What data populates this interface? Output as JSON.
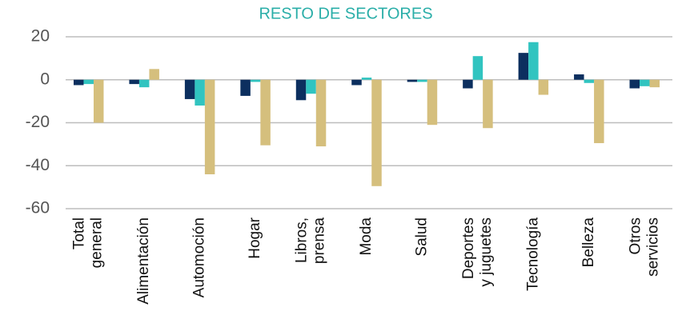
{
  "chart_data": {
    "type": "bar",
    "title": "RESTO DE SECTORES",
    "categories": [
      "Total general",
      "Alimentación",
      "Automoción",
      "Hogar",
      "Libros, prensa",
      "Moda",
      "Salud",
      "Deportes y juguetes",
      "Tecnología",
      "Belleza",
      "Otros servicios"
    ],
    "series": [
      {
        "color": "#0c2f5f",
        "values": [
          -2.5,
          -2,
          -9,
          -7.5,
          -9.5,
          -2.5,
          -1,
          -4,
          12.5,
          2.5,
          -4
        ]
      },
      {
        "color": "#31c4c0",
        "values": [
          -2,
          -3.5,
          -12,
          -1,
          -6.5,
          1,
          -1,
          11,
          17.5,
          -1.5,
          -3
        ]
      },
      {
        "color": "#d5bf7d",
        "values": [
          -20,
          5,
          -44,
          -30.5,
          -31,
          -49.5,
          -21,
          -22.5,
          -7,
          -29.5,
          -3.5
        ]
      }
    ],
    "ylim": [
      -60,
      20
    ],
    "yticks": [
      -60,
      -40,
      -20,
      0,
      20
    ],
    "grid": true
  }
}
